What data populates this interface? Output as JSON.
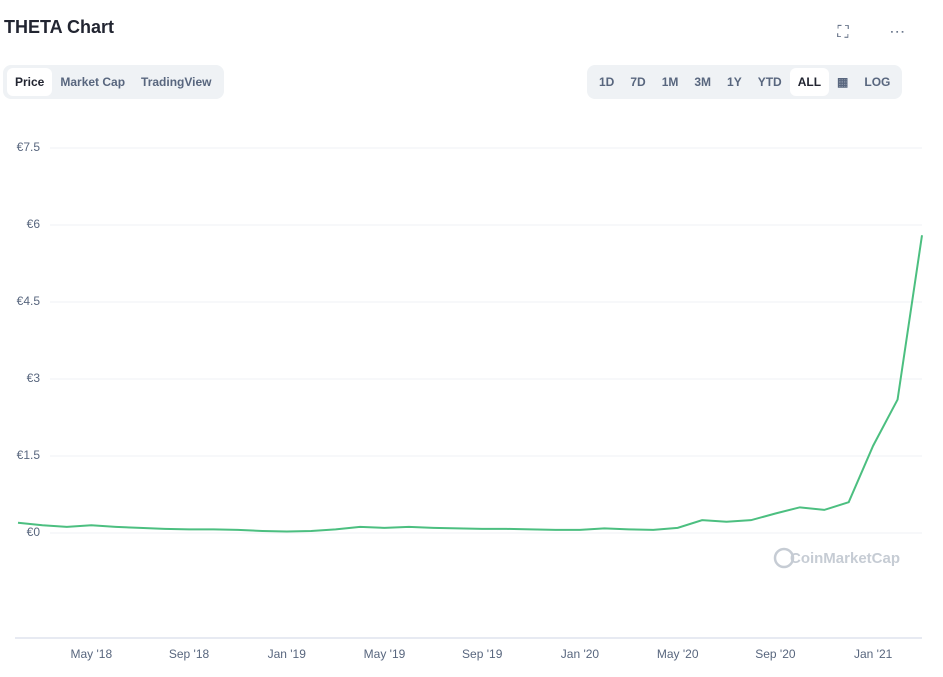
{
  "title": "THETA Chart",
  "tabs": [
    "Price",
    "Market Cap",
    "TradingView"
  ],
  "ranges": [
    "1D",
    "7D",
    "1M",
    "3M",
    "1Y",
    "YTD",
    "ALL"
  ],
  "log_button": "LOG",
  "watermark": "CoinMarketCap",
  "chart_data": {
    "type": "line",
    "categories": [
      null,
      null,
      null,
      "May '18",
      null,
      null,
      null,
      "Sep '18",
      null,
      null,
      null,
      "Jan '19",
      null,
      null,
      null,
      "May '19",
      null,
      null,
      null,
      "Sep '19",
      null,
      null,
      null,
      "Jan '20",
      null,
      null,
      null,
      "May '20",
      null,
      null,
      null,
      "Sep '20",
      null,
      null,
      null,
      "Jan '21",
      null,
      null
    ],
    "series": [
      {
        "name": "Price",
        "color": "#4cbf80",
        "values": [
          0.2,
          0.15,
          0.12,
          0.15,
          0.12,
          0.1,
          0.08,
          0.07,
          0.07,
          0.06,
          0.04,
          0.03,
          0.04,
          0.07,
          0.12,
          0.1,
          0.12,
          0.1,
          0.09,
          0.08,
          0.08,
          0.07,
          0.06,
          0.06,
          0.09,
          0.07,
          0.06,
          0.1,
          0.25,
          0.22,
          0.25,
          0.38,
          0.5,
          0.45,
          0.6,
          1.7,
          2.6,
          5.8
        ]
      }
    ],
    "ylim": [
      0,
      7.5
    ],
    "yticks": [
      {
        "value": 0,
        "label": "€0"
      },
      {
        "value": 1.5,
        "label": "€1.5"
      },
      {
        "value": 3,
        "label": "€3"
      },
      {
        "value": 4.5,
        "label": "€4.5"
      },
      {
        "value": 6,
        "label": "€6"
      },
      {
        "value": 7.5,
        "label": "€7.5"
      }
    ],
    "grid": true
  }
}
